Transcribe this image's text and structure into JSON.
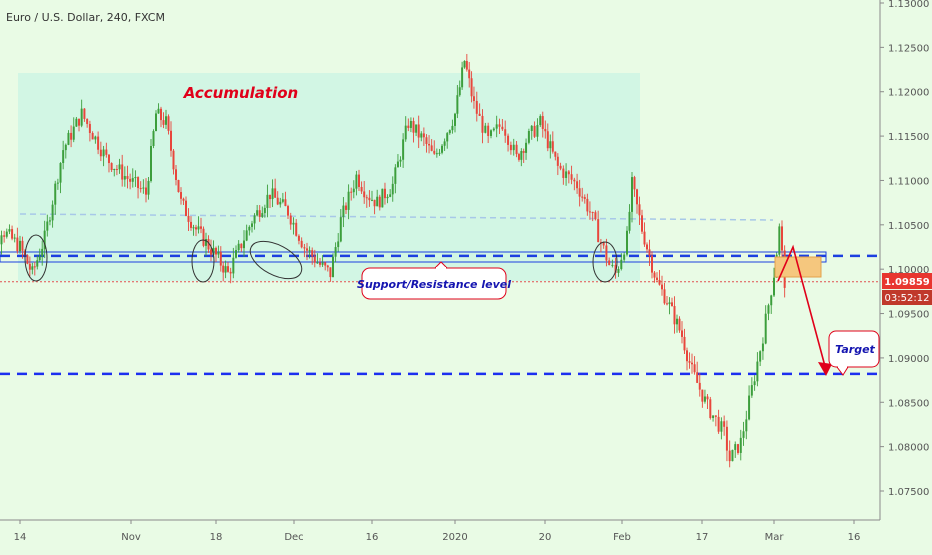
{
  "header": {
    "title": "Euro / U.S. Dollar, 240, FXCM"
  },
  "colors": {
    "background": "#e9fbe5",
    "accumulation_zone": "#cff5e3",
    "bull_candle": "#3c9e3c",
    "bear_candle": "#e8463c",
    "support_line": "#1c3fe0",
    "target_line": "#1c2ff0",
    "dotted_level": "#e05050",
    "order_box": "#f5c77e",
    "price_tag": "#e8362f",
    "timer_tag": "#c0392b",
    "annotation_red": "#e0001a",
    "annotation_blue": "#1515b0"
  },
  "price_axis": {
    "labels": [
      "1.13000",
      "1.12500",
      "1.12000",
      "1.11500",
      "1.11000",
      "1.10500",
      "1.10000",
      "1.09500",
      "1.09000",
      "1.08500",
      "1.08000",
      "1.07500"
    ],
    "current_price": "1.09859",
    "countdown": "03:52:12"
  },
  "time_axis": {
    "labels": [
      "14",
      "Nov",
      "18",
      "Dec",
      "16",
      "2020",
      "20",
      "Feb",
      "17",
      "Mar",
      "16"
    ]
  },
  "annotations": {
    "accumulation": "Accumulation",
    "support_resistance": "Support/Resistance level",
    "target": "Target"
  },
  "chart_data": {
    "type": "candlestick",
    "title": "Euro / U.S. Dollar, 240, FXCM",
    "instrument": "EURUSD",
    "timeframe": "240",
    "ylim": [
      1.072,
      1.131
    ],
    "x_ticks": [
      "14",
      "Nov",
      "18",
      "Dec",
      "16",
      "2020",
      "20",
      "Feb",
      "17",
      "Mar",
      "16"
    ],
    "price_path": [
      {
        "x": "Oct 7",
        "y": 1.0965
      },
      {
        "x": "Oct 11",
        "y": 1.1045
      },
      {
        "x": "Oct 14",
        "y": 1.1025
      },
      {
        "x": "Oct 16",
        "y": 1.0995
      },
      {
        "x": "Oct 18",
        "y": 1.1035
      },
      {
        "x": "Oct 21",
        "y": 1.1135
      },
      {
        "x": "Oct 24",
        "y": 1.1175
      },
      {
        "x": "Oct 28",
        "y": 1.1125
      },
      {
        "x": "Oct 31",
        "y": 1.1105
      },
      {
        "x": "Nov 4",
        "y": 1.1085
      },
      {
        "x": "Nov 6",
        "y": 1.1175
      },
      {
        "x": "Nov 8",
        "y": 1.1165
      },
      {
        "x": "Nov 11",
        "y": 1.1075
      },
      {
        "x": "Nov 14",
        "y": 1.1045
      },
      {
        "x": "Nov 18",
        "y": 1.1015
      },
      {
        "x": "Nov 20",
        "y": 1.0995
      },
      {
        "x": "Nov 24",
        "y": 1.1055
      },
      {
        "x": "Nov 27",
        "y": 1.1085
      },
      {
        "x": "Nov 30",
        "y": 1.1065
      },
      {
        "x": "Dec 3",
        "y": 1.1025
      },
      {
        "x": "Dec 6",
        "y": 1.1005
      },
      {
        "x": "Dec 8",
        "y": 1.0995
      },
      {
        "x": "Dec 10",
        "y": 1.1055
      },
      {
        "x": "Dec 13",
        "y": 1.1105
      },
      {
        "x": "Dec 15",
        "y": 1.1085
      },
      {
        "x": "Dec 17",
        "y": 1.1075
      },
      {
        "x": "Dec 20",
        "y": 1.1095
      },
      {
        "x": "Dec 23",
        "y": 1.1165
      },
      {
        "x": "Dec 26",
        "y": 1.1145
      },
      {
        "x": "Dec 28",
        "y": 1.1125
      },
      {
        "x": "Jan 1",
        "y": 1.1175
      },
      {
        "x": "Jan 3",
        "y": 1.1235
      },
      {
        "x": "Jan 5",
        "y": 1.1185
      },
      {
        "x": "Jan 8",
        "y": 1.1145
      },
      {
        "x": "Jan 11",
        "y": 1.1165
      },
      {
        "x": "Jan 14",
        "y": 1.1125
      },
      {
        "x": "Jan 16",
        "y": 1.1145
      },
      {
        "x": "Jan 19",
        "y": 1.1165
      },
      {
        "x": "Jan 22",
        "y": 1.1115
      },
      {
        "x": "Jan 25",
        "y": 1.1095
      },
      {
        "x": "Jan 27",
        "y": 1.1065
      },
      {
        "x": "Jan 30",
        "y": 1.1005
      },
      {
        "x": "Jan 31",
        "y": 1.0995
      },
      {
        "x": "Feb 2",
        "y": 1.1035
      },
      {
        "x": "Feb 3",
        "y": 1.1095
      },
      {
        "x": "Feb 5",
        "y": 1.1045
      },
      {
        "x": "Feb 8",
        "y": 1.0985
      },
      {
        "x": "Feb 10",
        "y": 1.0965
      },
      {
        "x": "Feb 13",
        "y": 1.0925
      },
      {
        "x": "Feb 15",
        "y": 1.0885
      },
      {
        "x": "Feb 18",
        "y": 1.0845
      },
      {
        "x": "Feb 21",
        "y": 1.0815
      },
      {
        "x": "Feb 22",
        "y": 1.0785
      },
      {
        "x": "Feb 24",
        "y": 1.0805
      },
      {
        "x": "Feb 26",
        "y": 1.0865
      },
      {
        "x": "Feb 28",
        "y": 1.0925
      },
      {
        "x": "Mar 1",
        "y": 1.0995
      },
      {
        "x": "Mar 2",
        "y": 1.1045
      },
      {
        "x": "Mar 3",
        "y": 1.0986
      }
    ],
    "levels": [
      {
        "name": "Support/Resistance level",
        "y": 1.1015
      },
      {
        "name": "Target",
        "y": 1.0882
      }
    ],
    "last_price": 1.09859,
    "grid": false
  }
}
